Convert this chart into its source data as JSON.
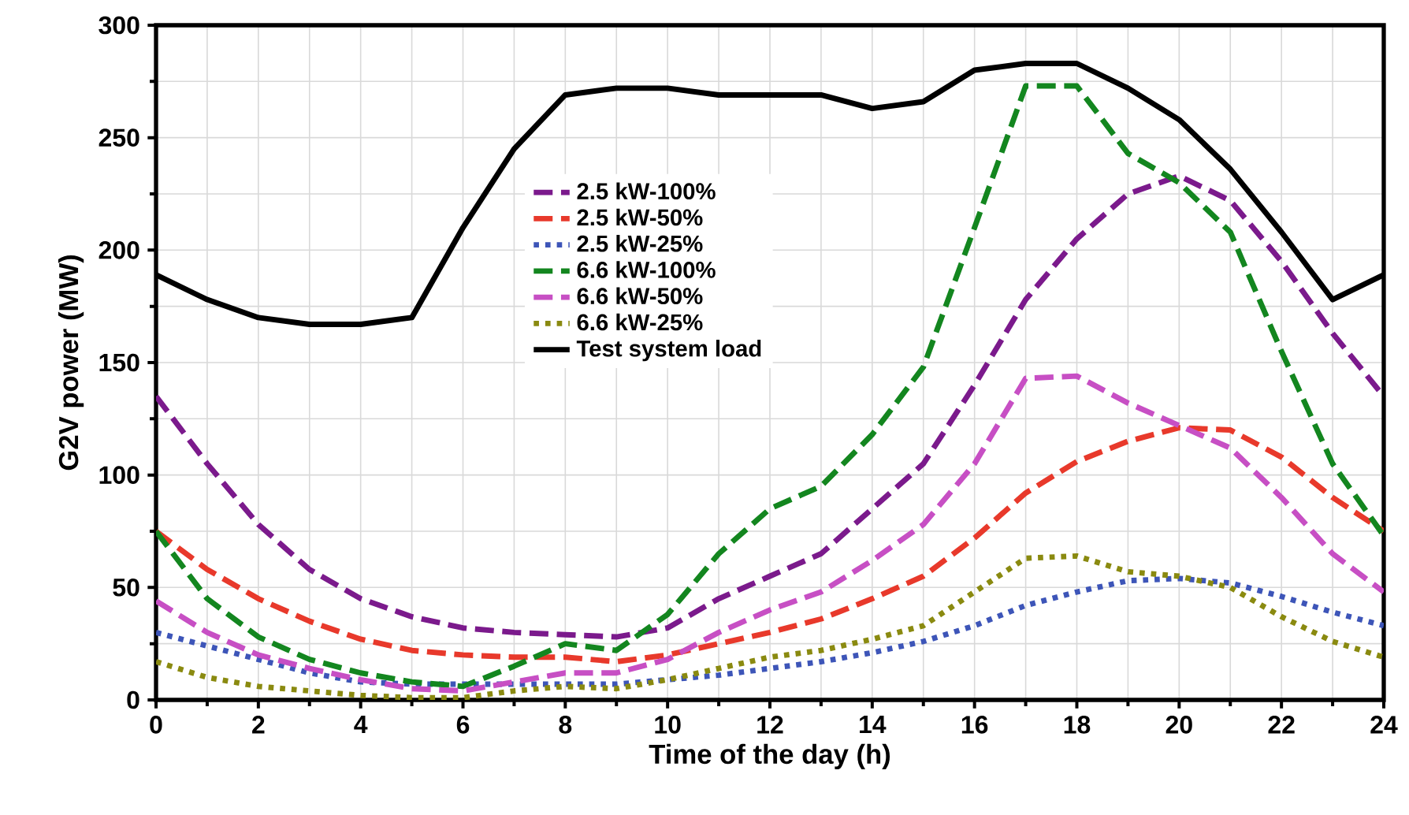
{
  "chart_data": {
    "type": "line",
    "xlabel": "Time of the day (h)",
    "ylabel": "G2V power (MW)",
    "x": [
      0,
      1,
      2,
      3,
      4,
      5,
      6,
      7,
      8,
      9,
      10,
      11,
      12,
      13,
      14,
      15,
      16,
      17,
      18,
      19,
      20,
      21,
      22,
      23,
      24
    ],
    "xlim": [
      0,
      24
    ],
    "xticks": [
      0,
      2,
      4,
      6,
      8,
      10,
      12,
      14,
      16,
      18,
      20,
      22,
      24
    ],
    "ylim": [
      0,
      300
    ],
    "yticks": [
      0,
      50,
      100,
      150,
      200,
      250,
      300
    ],
    "grid": true,
    "legend": "top",
    "marker": "none",
    "series": [
      {
        "name": "2.5 kW-100%",
        "color": "#7b1a8c",
        "line_style": "dashed",
        "values": [
          135,
          105,
          78,
          58,
          45,
          37,
          32,
          30,
          29,
          28,
          32,
          45,
          55,
          65,
          85,
          105,
          140,
          178,
          205,
          225,
          233,
          222,
          195,
          163,
          135
        ]
      },
      {
        "name": "2.5 kW-50%",
        "color": "#e8392b",
        "line_style": "dashed",
        "values": [
          75,
          58,
          45,
          35,
          27,
          22,
          20,
          19,
          19,
          17,
          20,
          25,
          30,
          36,
          45,
          55,
          72,
          92,
          106,
          115,
          121,
          120,
          108,
          90,
          75
        ]
      },
      {
        "name": "2.5 kW-25%",
        "color": "#3d55b8",
        "line_style": "dotted",
        "values": [
          30,
          24,
          18,
          12,
          8,
          7,
          7,
          7,
          7,
          7,
          9,
          11,
          14,
          17,
          21,
          26,
          33,
          42,
          48,
          53,
          54,
          52,
          46,
          39,
          33
        ]
      },
      {
        "name": "6.6 kW-100%",
        "color": "#13861f",
        "line_style": "dashed",
        "values": [
          75,
          45,
          28,
          18,
          12,
          8,
          6,
          15,
          25,
          22,
          38,
          65,
          85,
          95,
          118,
          148,
          210,
          273,
          273,
          243,
          230,
          208,
          155,
          105,
          73
        ]
      },
      {
        "name": "6.6 kW-50%",
        "color": "#c74fc4",
        "line_style": "dashed",
        "values": [
          44,
          30,
          20,
          14,
          9,
          5,
          4,
          8,
          12,
          12,
          18,
          30,
          40,
          48,
          62,
          78,
          105,
          143,
          144,
          132,
          122,
          112,
          90,
          65,
          48
        ]
      },
      {
        "name": "6.6 kW-25%",
        "color": "#8a8a10",
        "line_style": "dotted",
        "values": [
          17,
          10,
          6,
          4,
          2,
          1,
          1,
          4,
          6,
          5,
          9,
          14,
          19,
          22,
          27,
          33,
          48,
          63,
          64,
          57,
          55,
          50,
          37,
          26,
          19
        ]
      },
      {
        "name": "Test system load",
        "color": "#000000",
        "line_style": "solid",
        "values": [
          189,
          178,
          170,
          167,
          167,
          170,
          210,
          245,
          269,
          272,
          272,
          269,
          269,
          269,
          263,
          266,
          280,
          283,
          283,
          272,
          258,
          236,
          208,
          178,
          189
        ]
      }
    ]
  }
}
